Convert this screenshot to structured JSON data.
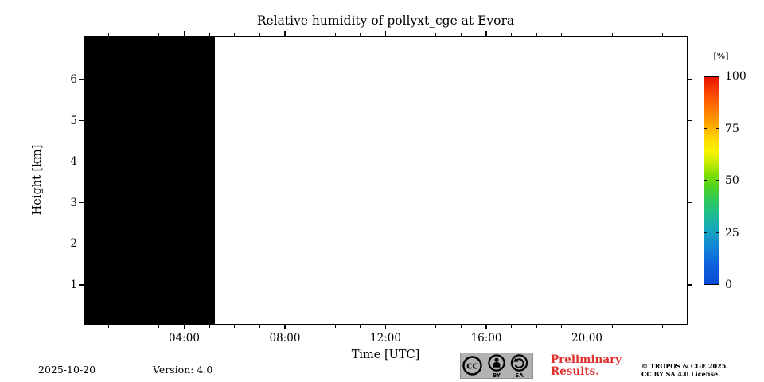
{
  "chart_data": {
    "type": "heatmap",
    "title": "Relative humidity of pollyxt_cge at Evora",
    "xlabel": "Time [UTC]",
    "ylabel": "Height [km]",
    "x_axis": {
      "range_hours": [
        0,
        24
      ],
      "major_ticks": [
        {
          "hour": 4,
          "label": "04:00"
        },
        {
          "hour": 8,
          "label": "08:00"
        },
        {
          "hour": 12,
          "label": "12:00"
        },
        {
          "hour": 16,
          "label": "16:00"
        },
        {
          "hour": 20,
          "label": "20:00"
        }
      ],
      "minor_tick_interval_hours": 1
    },
    "y_axis": {
      "range_km": [
        0,
        7.05
      ],
      "major_ticks": [
        1,
        2,
        3,
        4,
        5,
        6
      ]
    },
    "colorbar": {
      "label": "[%]",
      "min": 0,
      "max": 100,
      "ticks": [
        0,
        25,
        50,
        75,
        100
      ],
      "gradient_stops_top_to_bottom": [
        {
          "pos": 0,
          "color": "#e71300"
        },
        {
          "pos": 8,
          "color": "#fd4800"
        },
        {
          "pos": 16,
          "color": "#ff7b00"
        },
        {
          "pos": 23,
          "color": "#ffa800"
        },
        {
          "pos": 30,
          "color": "#ffd900"
        },
        {
          "pos": 36,
          "color": "#f8f500"
        },
        {
          "pos": 42,
          "color": "#beea00"
        },
        {
          "pos": 48,
          "color": "#77dc06"
        },
        {
          "pos": 53,
          "color": "#4ed31f"
        },
        {
          "pos": 59,
          "color": "#30c95b"
        },
        {
          "pos": 66,
          "color": "#1fbd8d"
        },
        {
          "pos": 73,
          "color": "#17a9bb"
        },
        {
          "pos": 81,
          "color": "#1189d3"
        },
        {
          "pos": 90,
          "color": "#0d64dc"
        },
        {
          "pos": 100,
          "color": "#0b4cd6"
        }
      ]
    },
    "series": [
      {
        "name": "no-data-block",
        "description": "solid black region (no retrieved data)",
        "start_hour": 0,
        "end_hour": 5.2,
        "y_from_km": 0,
        "y_to_km": 7.05,
        "color": "#000000"
      }
    ]
  },
  "footer": {
    "date": "2025-10-20",
    "version": "Version: 4.0",
    "license_badge": {
      "cc_label": "CC",
      "by_label": "BY",
      "sa_label": "SA",
      "bg_color": "#b2b2b2"
    },
    "preliminary_line1": "Preliminary",
    "preliminary_line2": "Results.",
    "preliminary_color": "#e03131",
    "copyright_line1": "© TROPOS & CGE 2025.",
    "copyright_line2": "CC BY SA 4.0 License."
  }
}
